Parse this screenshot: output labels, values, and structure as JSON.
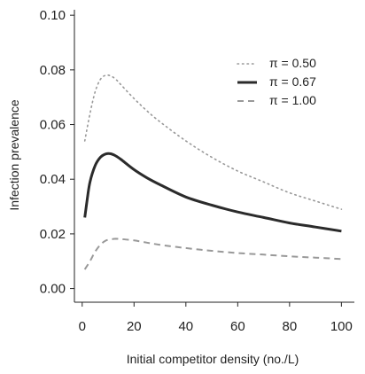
{
  "chart_data": {
    "type": "line",
    "xlabel": "Initial competitor density (no./L)",
    "ylabel": "Infection prevalence",
    "xlim": [
      -3,
      105
    ],
    "ylim": [
      -0.005,
      0.102
    ],
    "xticks": [
      0,
      20,
      40,
      60,
      80,
      100
    ],
    "yticks": [
      0.0,
      0.02,
      0.04,
      0.06,
      0.08,
      0.1
    ],
    "xtick_labels": [
      "0",
      "20",
      "40",
      "60",
      "80",
      "100"
    ],
    "ytick_labels": [
      "0.00",
      "0.02",
      "0.04",
      "0.06",
      "0.08",
      "0.10"
    ],
    "grid": false,
    "legend_position": "top-right",
    "series": [
      {
        "name": "π = 0.50",
        "style": "dotted",
        "color": "#999999",
        "x": [
          1,
          3,
          5,
          7,
          9,
          11,
          13,
          15,
          20,
          25,
          30,
          40,
          50,
          60,
          70,
          80,
          90,
          100
        ],
        "y": [
          0.054,
          0.064,
          0.072,
          0.0765,
          0.078,
          0.0778,
          0.0765,
          0.0745,
          0.0695,
          0.065,
          0.061,
          0.054,
          0.048,
          0.043,
          0.039,
          0.035,
          0.032,
          0.029
        ]
      },
      {
        "name": "π = 0.67",
        "style": "solid",
        "color": "#2b2b2b",
        "x": [
          1,
          2,
          3,
          5,
          7,
          9,
          11,
          13,
          15,
          20,
          25,
          30,
          40,
          50,
          60,
          70,
          80,
          90,
          100
        ],
        "y": [
          0.026,
          0.033,
          0.039,
          0.045,
          0.048,
          0.0492,
          0.0493,
          0.0485,
          0.0472,
          0.0435,
          0.0405,
          0.038,
          0.0335,
          0.0305,
          0.028,
          0.026,
          0.024,
          0.0225,
          0.021
        ]
      },
      {
        "name": "π = 1.00",
        "style": "dashed",
        "color": "#999999",
        "x": [
          1,
          3,
          5,
          7,
          9,
          11,
          13,
          15,
          20,
          25,
          30,
          40,
          50,
          60,
          70,
          80,
          90,
          100
        ],
        "y": [
          0.007,
          0.01,
          0.0135,
          0.016,
          0.0175,
          0.018,
          0.0182,
          0.0181,
          0.0176,
          0.0168,
          0.016,
          0.0148,
          0.0138,
          0.013,
          0.0124,
          0.0118,
          0.0113,
          0.0108
        ]
      }
    ]
  }
}
